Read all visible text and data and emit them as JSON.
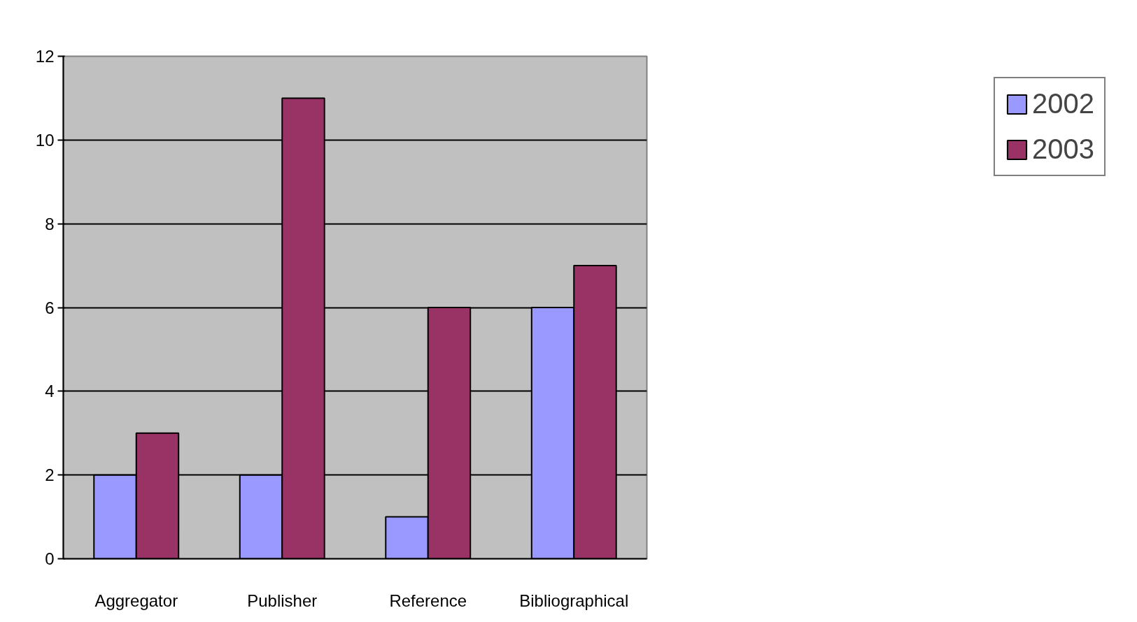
{
  "chart_data": {
    "type": "bar",
    "categories": [
      "Aggregator",
      "Publisher",
      "Reference",
      "Bibliographical"
    ],
    "series": [
      {
        "name": "2002",
        "color": "#9999ff",
        "values": [
          2,
          2,
          1,
          6
        ]
      },
      {
        "name": "2003",
        "color": "#993366",
        "values": [
          3,
          11,
          6,
          7
        ]
      }
    ],
    "ylim": [
      0,
      12
    ],
    "yticks": [
      0,
      2,
      4,
      6,
      8,
      10,
      12
    ],
    "grid": "y",
    "legend": "right"
  }
}
